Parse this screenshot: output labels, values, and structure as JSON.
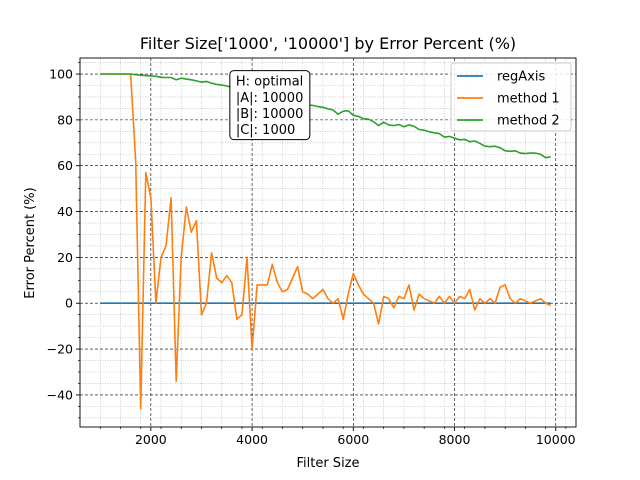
{
  "chart_data": {
    "type": "line",
    "title": "Filter Size['1000', '10000'] by Error Percent (%)",
    "xlabel": "Filter Size",
    "ylabel": "Error Percent (%)",
    "xlim": [
      600,
      10400
    ],
    "ylim": [
      -54,
      107
    ],
    "xticks": [
      2000,
      4000,
      6000,
      8000,
      10000
    ],
    "yticks": [
      -40,
      -20,
      0,
      20,
      40,
      60,
      80,
      100
    ],
    "xtick_labels": [
      "2000",
      "4000",
      "6000",
      "8000",
      "10000"
    ],
    "ytick_labels": [
      "−40",
      "−20",
      "0",
      "20",
      "40",
      "60",
      "80",
      "100"
    ],
    "grid": true,
    "legend_position": "top-right",
    "annotation": {
      "lines": [
        "H: optimal",
        "|A|: 10000",
        "|B|: 10000",
        "|C|: 1000"
      ],
      "anchor": [
        3600,
        101.5
      ]
    },
    "series": [
      {
        "name": "regAxis",
        "color": "#1f77b4",
        "x": [
          1000,
          9900
        ],
        "y": [
          0,
          0
        ]
      },
      {
        "name": "method 1",
        "color": "#ff7f0e",
        "x": [
          1000,
          1600,
          1700,
          1800,
          1900,
          2000,
          2100,
          2200,
          2300,
          2400,
          2500,
          2600,
          2700,
          2800,
          2900,
          3000,
          3100,
          3200,
          3300,
          3400,
          3500,
          3600,
          3700,
          3800,
          3900,
          4000,
          4100,
          4200,
          4300,
          4400,
          4500,
          4600,
          4700,
          4800,
          4900,
          5000,
          5100,
          5200,
          5300,
          5400,
          5500,
          5600,
          5700,
          5800,
          5900,
          6000,
          6100,
          6200,
          6300,
          6400,
          6500,
          6600,
          6700,
          6800,
          6900,
          7000,
          7100,
          7200,
          7300,
          7400,
          7500,
          7600,
          7700,
          7800,
          7900,
          8000,
          8100,
          8200,
          8300,
          8400,
          8500,
          8600,
          8700,
          8800,
          8900,
          9000,
          9100,
          9200,
          9300,
          9400,
          9500,
          9600,
          9700,
          9800,
          9900
        ],
        "y": [
          100,
          100,
          62,
          -46,
          57,
          46,
          0,
          20,
          25,
          46,
          -34,
          20,
          42,
          31,
          36,
          -5,
          0,
          22,
          11,
          9,
          12,
          9,
          -7,
          -5,
          20,
          -20,
          8,
          8,
          8,
          17,
          9,
          5,
          6,
          11,
          16,
          5,
          4,
          2,
          4,
          6,
          2,
          0,
          2,
          -7,
          4,
          13,
          8,
          4,
          2,
          0,
          -9,
          3,
          2,
          -2,
          3,
          2,
          8,
          -3,
          4,
          2,
          1,
          0,
          3,
          0,
          3,
          0,
          3,
          2,
          6,
          -3,
          2,
          0,
          2,
          0,
          7,
          8,
          2,
          0,
          2,
          1,
          0,
          1,
          2,
          0,
          -1
        ],
        "note": ""
      },
      {
        "name": "method 2",
        "color": "#2ca02c",
        "x": [
          1000,
          1100,
          1200,
          1300,
          1400,
          1500,
          1600,
          1700,
          1800,
          1900,
          2000,
          2100,
          2200,
          2300,
          2400,
          2500,
          2600,
          2700,
          2800,
          2900,
          3000,
          3100,
          3200,
          3300,
          3400,
          3500,
          3600,
          3700,
          3800,
          3900,
          4000,
          4100,
          4200,
          4300,
          4400,
          4500,
          4600,
          4700,
          4800,
          4900,
          5000,
          5100,
          5200,
          5300,
          5400,
          5500,
          5600,
          5700,
          5800,
          5900,
          6000,
          6100,
          6200,
          6300,
          6400,
          6500,
          6600,
          6700,
          6800,
          6900,
          7000,
          7100,
          7200,
          7300,
          7400,
          7500,
          7600,
          7700,
          7800,
          7900,
          8000,
          8100,
          8200,
          8300,
          8400,
          8500,
          8600,
          8700,
          8800,
          8900,
          9000,
          9100,
          9200,
          9300,
          9400,
          9500,
          9600,
          9700,
          9800,
          9900
        ],
        "y": [
          100,
          100,
          100,
          100,
          100,
          100,
          100,
          99.7,
          99.5,
          99.3,
          99.2,
          99,
          98.6,
          98.5,
          98.5,
          97.5,
          98.2,
          97.8,
          97.5,
          97,
          96.5,
          96.8,
          96,
          95.5,
          95.2,
          94.8,
          94.2,
          93.5,
          93.5,
          92.8,
          92,
          91.5,
          91.3,
          90.8,
          90.3,
          89.5,
          89,
          89.2,
          88,
          87.5,
          87.3,
          86.5,
          86.3,
          85.8,
          85.5,
          84.8,
          84.3,
          82.5,
          83.8,
          84,
          82,
          81.5,
          80.5,
          80.3,
          79.2,
          77.5,
          79,
          77.8,
          77.5,
          78,
          77,
          77.8,
          77.2,
          75.8,
          75.5,
          74.8,
          74.3,
          74,
          72.5,
          72.8,
          72,
          71.3,
          71.5,
          70.5,
          70.8,
          69.8,
          68.5,
          68.3,
          68.5,
          67.8,
          66.5,
          66.3,
          66.5,
          65.5,
          65.3,
          65.5,
          65.5,
          65,
          63.5,
          64
        ]
      }
    ]
  }
}
